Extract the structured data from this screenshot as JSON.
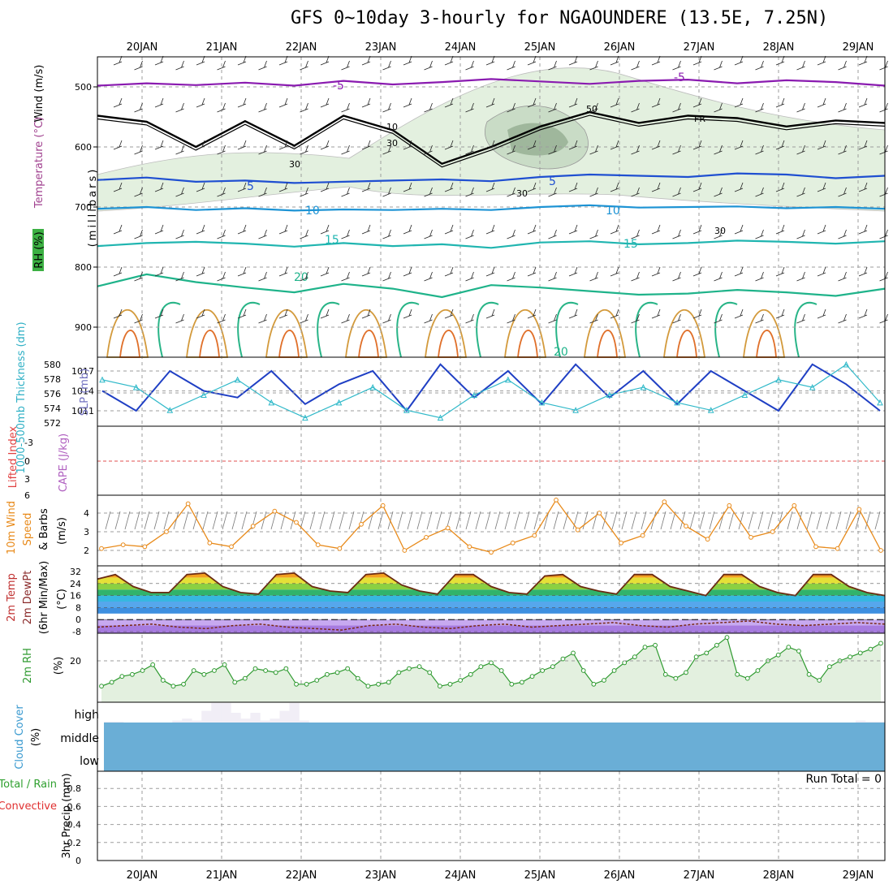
{
  "title": "GFS 0~10day 3-hourly for NGAOUNDERE (13.5E, 7.25N)",
  "dates": [
    "20JAN",
    "21JAN",
    "22JAN",
    "23JAN",
    "24JAN",
    "25JAN",
    "26JAN",
    "27JAN",
    "28JAN",
    "29JAN"
  ],
  "colors": {
    "grid": "#9e9e9e",
    "frame": "#000000",
    "cloud": "#6aaed6",
    "rhfill": "#e3f0df"
  },
  "chart_data": [
    {
      "type": "line",
      "panel": "upper-air",
      "ylabel": "(millibars)",
      "yticks": [
        "500",
        "600",
        "700",
        "800",
        "900"
      ],
      "ylim": [
        950,
        450
      ],
      "side_labels": [
        "Wind (m/s)",
        "Temperature (°C)",
        "RH (%)"
      ],
      "isotherm_labels": [
        "-5",
        "-5",
        "5",
        "5",
        "10",
        "10",
        "15",
        "15",
        "20",
        "20"
      ],
      "rh_labels": [
        "10",
        "30",
        "50",
        "30",
        "30",
        "30"
      ],
      "freezing_label": "FR",
      "series": [
        {
          "name": "-5C",
          "pressure": [
            498,
            494,
            497,
            493,
            498,
            490,
            496,
            492,
            487,
            491,
            495,
            490,
            488,
            494,
            489,
            492,
            498
          ]
        },
        {
          "name": "5C",
          "pressure": [
            655,
            651,
            658,
            656,
            660,
            658,
            656,
            654,
            657,
            650,
            646,
            648,
            650,
            644,
            646,
            652,
            648
          ]
        },
        {
          "name": "10C",
          "pressure": [
            703,
            700,
            705,
            702,
            706,
            704,
            705,
            703,
            705,
            700,
            697,
            701,
            700,
            699,
            702,
            700,
            703
          ]
        },
        {
          "name": "15C",
          "pressure": [
            765,
            760,
            758,
            761,
            766,
            760,
            765,
            762,
            768,
            759,
            757,
            762,
            760,
            756,
            758,
            761,
            757
          ]
        },
        {
          "name": "20C",
          "pressure": [
            832,
            812,
            825,
            834,
            842,
            828,
            836,
            850,
            830,
            834,
            840,
            846,
            844,
            838,
            842,
            848,
            836
          ]
        },
        {
          "name": "freezing",
          "pressure": [
            548,
            558,
            600,
            557,
            598,
            548,
            572,
            628,
            600,
            566,
            542,
            560,
            548,
            552,
            566,
            556,
            560
          ]
        }
      ]
    },
    {
      "type": "line",
      "panel": "pressure",
      "ylabel_left": "1000-500mb Thickness (dm)",
      "ylabel_right": "SLP (mb)",
      "yticks_left": [
        "580",
        "578",
        "576",
        "574",
        "572"
      ],
      "yticks_right": [
        "1017",
        "1014",
        "1011"
      ],
      "series": [
        {
          "name": "SLP",
          "values": [
            1014,
            1011,
            1017,
            1014,
            1013,
            1017,
            1012,
            1015,
            1017,
            1011,
            1018,
            1013,
            1017,
            1012,
            1018,
            1013,
            1017,
            1012,
            1017,
            1014,
            1011,
            1018,
            1015,
            1011
          ]
        },
        {
          "name": "Thickness",
          "values": [
            578,
            577,
            574,
            576,
            578,
            575,
            573,
            575,
            577,
            574,
            573,
            576,
            578,
            575,
            574,
            576,
            577,
            575,
            574,
            576,
            578,
            577,
            580,
            575
          ]
        }
      ]
    },
    {
      "type": "line",
      "panel": "stability",
      "ylabel_left": "Lifted Index",
      "ylabel_right": "CAPE (J/kg)",
      "yticks": [
        "-3",
        "0",
        "3",
        "6"
      ],
      "series": [
        {
          "name": "Lifted Index",
          "values": []
        },
        {
          "name": "CAPE",
          "values": []
        }
      ]
    },
    {
      "type": "line",
      "panel": "wind10m",
      "ylabel": "10m Wind Speed & Barbs (m/s)",
      "yticks": [
        "4",
        "3",
        "2"
      ],
      "series": [
        {
          "name": "Wind speed",
          "values": [
            2.1,
            2.3,
            2.2,
            3.0,
            4.5,
            2.4,
            2.2,
            3.3,
            4.1,
            3.5,
            2.3,
            2.1,
            3.4,
            4.4,
            2.0,
            2.7,
            3.2,
            2.2,
            1.9,
            2.4,
            2.8,
            4.7,
            3.1,
            4.0,
            2.4,
            2.8,
            4.6,
            3.3,
            2.6,
            4.4,
            2.7,
            3.0,
            4.4,
            2.2,
            2.1,
            4.2,
            2.0
          ]
        }
      ]
    },
    {
      "type": "area",
      "panel": "temperature2m",
      "ylabel": "2m Temp 2m DewPt (6hr Min/Max) (°C)",
      "yticks": [
        "32",
        "24",
        "16",
        "8",
        "0",
        "-8"
      ],
      "series": [
        {
          "name": "Temperature",
          "values": [
            27,
            30,
            22,
            18,
            18,
            30,
            31,
            22,
            18,
            17,
            30,
            31,
            22,
            19,
            18,
            30,
            31,
            23,
            19,
            17,
            30,
            30,
            22,
            18,
            17,
            29,
            30,
            22,
            19,
            17,
            30,
            30,
            22,
            19,
            16,
            30,
            30,
            22,
            18,
            16,
            30,
            30,
            22,
            18,
            16
          ]
        },
        {
          "name": "Dew point",
          "values": [
            -5,
            -4,
            -3,
            -5,
            -6,
            -4,
            -3,
            -5,
            -6,
            -7,
            -4,
            -3,
            -5,
            -6,
            -4,
            -3,
            -5,
            -4,
            -3,
            -2,
            -4,
            -5,
            -3,
            -2,
            -1,
            -3,
            -4,
            -3,
            -2,
            -3
          ]
        }
      ]
    },
    {
      "type": "area",
      "panel": "rh2m",
      "ylabel": "2m RH (%)",
      "yticks": [
        "20"
      ],
      "series": [
        {
          "name": "RH",
          "values": [
            7,
            9,
            12,
            13,
            15,
            18,
            10,
            7,
            8,
            15,
            13,
            15,
            18,
            9,
            11,
            16,
            15,
            14,
            16,
            8,
            8,
            10,
            13,
            14,
            16,
            11,
            7,
            8,
            9,
            14,
            16,
            17,
            14,
            7,
            8,
            10,
            13,
            17,
            19,
            15,
            8,
            9,
            12,
            15,
            17,
            21,
            24,
            15,
            8,
            10,
            15,
            19,
            22,
            27,
            28,
            13,
            11,
            14,
            22,
            24,
            28,
            32,
            13,
            11,
            15,
            20,
            23,
            27,
            25,
            13,
            10,
            17,
            20,
            22,
            24,
            26,
            29
          ]
        }
      ]
    },
    {
      "type": "bar",
      "panel": "cloud",
      "ylabel": "Cloud Cover (%)",
      "level_labels": [
        "high",
        "middle",
        "low"
      ],
      "series": [
        {
          "name": "High cloud",
          "values": [
            5,
            5,
            0,
            0,
            0,
            0,
            0,
            10,
            20,
            10,
            60,
            100,
            100,
            50,
            20,
            50,
            10,
            20,
            60,
            100,
            10,
            0,
            0,
            0,
            0,
            0,
            0,
            0,
            0,
            0,
            0,
            0,
            0,
            0,
            0,
            0,
            0,
            0,
            0,
            0,
            0,
            0,
            0,
            0,
            0,
            0,
            0,
            0,
            0,
            0,
            0,
            0,
            0,
            0,
            0,
            0,
            0,
            0,
            0,
            0,
            0,
            0,
            0,
            0,
            0,
            0,
            0,
            0,
            0,
            0,
            0,
            0,
            0,
            0,
            0,
            0,
            0,
            10,
            5,
            5
          ]
        }
      ]
    },
    {
      "type": "bar",
      "panel": "precip",
      "ylabel": "3hr Precip (mm)",
      "side_labels": [
        "Total / Rain",
        "Convective"
      ],
      "yticks": [
        "0.8",
        "0.6",
        "0.4",
        "0.2",
        "0"
      ],
      "run_total": "Run Total = 0",
      "series": [
        {
          "name": "Total",
          "values": []
        }
      ]
    }
  ]
}
